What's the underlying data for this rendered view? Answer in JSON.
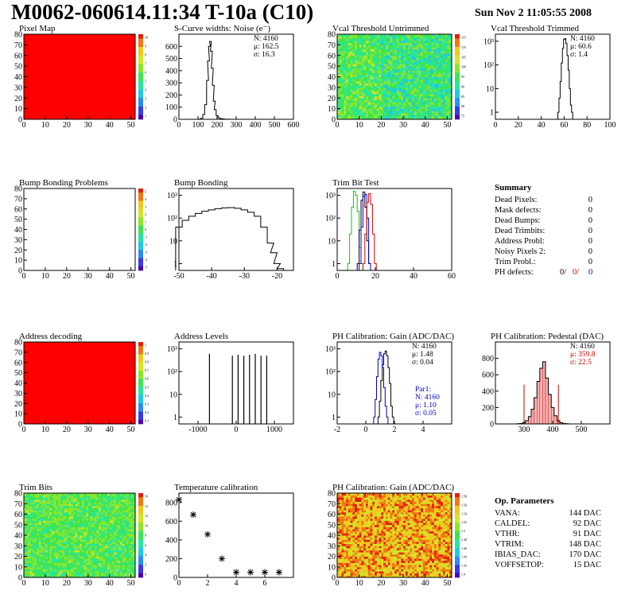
{
  "header": {
    "title": "M0062-060614.11:34 T-10a (C10)",
    "date": "Sun Nov  2 11:05:55 2008"
  },
  "summary": {
    "title": "Summary",
    "rows": [
      {
        "label": "Dead Pixels:",
        "value": "0"
      },
      {
        "label": "Mask defects:",
        "value": "0"
      },
      {
        "label": "Dead Bumps:",
        "value": "0"
      },
      {
        "label": "Dead Trimbits:",
        "value": "0"
      },
      {
        "label": "Address Probl:",
        "value": "0"
      },
      {
        "label": "Noisy Pixels 2:",
        "value": "0"
      },
      {
        "label": "Trim Probl.:",
        "value": "0"
      }
    ],
    "ph_defects": {
      "label": "PH defects:",
      "v1": "0/",
      "v2": "0/",
      "v3": "0"
    }
  },
  "op_parameters": {
    "title": "Op. Parameters",
    "rows": [
      {
        "label": "VANA:",
        "value": "144 DAC"
      },
      {
        "label": "CALDEL:",
        "value": "92 DAC"
      },
      {
        "label": "VTHR:",
        "value": "91 DAC"
      },
      {
        "label": "VTRIM:",
        "value": "148 DAC"
      },
      {
        "label": "IBIAS_DAC:",
        "value": "170 DAC"
      },
      {
        "label": "VOFFSETOP:",
        "value": "15 DAC"
      }
    ]
  },
  "colors": {
    "red_stat": "#cc0000",
    "blue_stat": "#0000cc",
    "trim_green": "#00cc00",
    "trim_red": "#dd0000",
    "trim_blue": "#0000cc",
    "black": "#000000"
  },
  "chart_data": [
    {
      "id": "pixel-map",
      "type": "heatmap",
      "title": "Pixel Map",
      "xlim": [
        0,
        52
      ],
      "ylim": [
        0,
        80
      ],
      "xticks": [
        "0",
        "10",
        "20",
        "30",
        "40",
        "50"
      ],
      "yticks": [
        "0",
        "10",
        "20",
        "30",
        "40",
        "50",
        "60",
        "70",
        "80"
      ],
      "fill": "uniform-max",
      "palette_ticks": [
        "10",
        "9",
        "8",
        "7",
        "6",
        "5",
        "4",
        "3",
        "2",
        "1"
      ]
    },
    {
      "id": "scurve-noise",
      "type": "line",
      "title": "S-Curve widths: Noise (e⁻)",
      "xlim": [
        0,
        600
      ],
      "ylim": [
        0,
        700
      ],
      "xticks": [
        "0",
        "100",
        "200",
        "300",
        "400",
        "500",
        "600"
      ],
      "yticks": [
        "0",
        "100",
        "200",
        "300",
        "400",
        "500",
        "600"
      ],
      "x": [
        100,
        110,
        120,
        130,
        140,
        150,
        155,
        160,
        165,
        170,
        175,
        180,
        185,
        190,
        200,
        210,
        220,
        230,
        240,
        250,
        260,
        280,
        300
      ],
      "y": [
        0,
        2,
        8,
        40,
        120,
        320,
        480,
        600,
        640,
        560,
        420,
        280,
        150,
        80,
        30,
        12,
        6,
        3,
        2,
        1,
        1,
        0,
        0
      ],
      "stats": {
        "n": "N: 4160",
        "mu": "μ: 162.5",
        "sigma": "σ: 16.3"
      }
    },
    {
      "id": "vcal-untrimmed",
      "type": "heatmap",
      "title": "Vcal Threshold Untrimmed",
      "xlim": [
        0,
        52
      ],
      "ylim": [
        0,
        80
      ],
      "xticks": [
        "0",
        "10",
        "20",
        "30",
        "40",
        "50"
      ],
      "yticks": [
        "0",
        "10",
        "20",
        "30",
        "40",
        "50",
        "60",
        "70",
        "80"
      ],
      "fill": "random-low",
      "palette_ticks": [
        "115",
        "110",
        "105",
        "100",
        "95",
        "90",
        "85",
        "80",
        "75"
      ]
    },
    {
      "id": "vcal-trimmed",
      "type": "line",
      "title": "Vcal Threshold Trimmed",
      "log_y": true,
      "xlim": [
        0,
        100
      ],
      "ylim_exp": [
        -0.3,
        3.3
      ],
      "xticks": [
        "0",
        "20",
        "40",
        "60",
        "80",
        "100"
      ],
      "yticks": [
        "1",
        "10",
        "10²",
        "10³"
      ],
      "x": [
        55,
        56,
        57,
        58,
        59,
        60,
        61,
        62,
        63,
        64,
        65,
        66,
        67
      ],
      "y": [
        1,
        4,
        20,
        120,
        500,
        1200,
        1300,
        800,
        250,
        60,
        10,
        2,
        1
      ],
      "stats": {
        "n": "N: 4160",
        "mu": "μ: 60.6",
        "sigma": "σ:  1.4"
      }
    },
    {
      "id": "bump-bonding-problems",
      "type": "heatmap",
      "title": "Bump Bonding Problems",
      "xlim": [
        0,
        52
      ],
      "ylim": [
        0,
        80
      ],
      "xticks": [
        "0",
        "10",
        "20",
        "30",
        "40",
        "50"
      ],
      "yticks": [
        "0",
        "10",
        "20",
        "30",
        "40",
        "50",
        "60",
        "70",
        "80"
      ],
      "fill": "empty",
      "palette_ticks": [
        "5",
        "4",
        "3",
        "2",
        "1",
        "0",
        "-1",
        "-2",
        "-3",
        "-4",
        "-5"
      ]
    },
    {
      "id": "bump-bonding",
      "type": "line",
      "title": "Bump Bonding",
      "log_y": true,
      "xlim": [
        -50,
        -15
      ],
      "ylim_exp": [
        -0.3,
        3.3
      ],
      "xticks": [
        "-50",
        "-40",
        "-30",
        "-20"
      ],
      "yticks": [
        "1",
        "10",
        "10²",
        "10³"
      ],
      "x": [
        -50,
        -48,
        -46,
        -44,
        -42,
        -40,
        -38,
        -36,
        -34,
        -32,
        -30,
        -28,
        -26,
        -24,
        -22,
        -21,
        -20,
        -19
      ],
      "y": [
        40,
        80,
        120,
        160,
        200,
        230,
        260,
        280,
        290,
        270,
        230,
        180,
        120,
        40,
        8,
        3,
        1,
        0.6
      ],
      "stats": {}
    },
    {
      "id": "trim-bit-test",
      "type": "line",
      "title": "Trim Bit Test",
      "log_y": true,
      "xlim": [
        0,
        60
      ],
      "ylim_exp": [
        -0.3,
        3.3
      ],
      "xticks": [
        "0",
        "20",
        "40",
        "60"
      ],
      "yticks": [
        "1",
        "10",
        "10²",
        "10³"
      ],
      "series": [
        {
          "color": "#00cc00",
          "x": [
            6,
            7,
            8,
            9,
            10,
            11,
            12,
            13
          ],
          "y": [
            1,
            20,
            300,
            1500,
            1000,
            200,
            5,
            1
          ]
        },
        {
          "color": "#000000",
          "x": [
            11,
            12,
            13,
            14,
            15,
            16,
            17
          ],
          "y": [
            1,
            30,
            600,
            1400,
            300,
            10,
            1
          ]
        },
        {
          "color": "#0000cc",
          "x": [
            12,
            13,
            14,
            15,
            16,
            17
          ],
          "y": [
            1,
            40,
            900,
            1100,
            100,
            1
          ]
        },
        {
          "color": "#dd0000",
          "x": [
            14,
            15,
            16,
            17,
            18,
            19,
            20
          ],
          "y": [
            1,
            20,
            500,
            1200,
            400,
            20,
            1
          ]
        }
      ],
      "stats": {}
    },
    {
      "id": "address-decoding",
      "type": "heatmap",
      "title": "Address decoding",
      "xlim": [
        0,
        52
      ],
      "ylim": [
        0,
        80
      ],
      "xticks": [
        "0",
        "10",
        "20",
        "30",
        "40",
        "50"
      ],
      "yticks": [
        "0",
        "10",
        "20",
        "30",
        "40",
        "50",
        "60",
        "70",
        "80"
      ],
      "fill": "uniform-max",
      "palette_ticks": [
        "1",
        "0.9",
        "0.8",
        "0.7",
        "0.6",
        "0.5",
        "0.4",
        "0.3",
        "0.2",
        "0.1"
      ]
    },
    {
      "id": "address-levels",
      "type": "bar",
      "title": "Address Levels",
      "log_y": true,
      "xlim": [
        -1500,
        1500
      ],
      "ylim_exp": [
        -0.3,
        3.3
      ],
      "xticks": [
        "-1000",
        "0",
        "1000"
      ],
      "yticks": [
        "1",
        "10",
        "10²",
        "10³"
      ],
      "x": [
        -700,
        -100,
        50,
        200,
        350,
        500,
        650,
        800
      ],
      "y": [
        600,
        500,
        550,
        500,
        550,
        600,
        500,
        500
      ],
      "stats": {}
    },
    {
      "id": "ph-gain",
      "type": "line",
      "title": "PH Calibration: Gain (ADC/DAC)",
      "log_y": true,
      "xlim": [
        -2,
        6
      ],
      "ylim_exp": [
        -0.3,
        3.3
      ],
      "xticks": [
        "-2",
        "0",
        "2",
        "4"
      ],
      "yticks": [
        "1",
        "10",
        "10²",
        "10³"
      ],
      "series": [
        {
          "color": "#000000",
          "x": [
            0.9,
            1.0,
            1.1,
            1.2,
            1.3,
            1.4,
            1.5,
            1.6,
            1.7,
            1.8,
            1.9
          ],
          "y": [
            1,
            5,
            40,
            200,
            600,
            800,
            500,
            150,
            30,
            3,
            1
          ]
        },
        {
          "color": "#0000cc",
          "x": [
            0.6,
            0.7,
            0.8,
            0.9,
            1.0,
            1.1,
            1.2,
            1.3,
            1.4,
            1.5
          ],
          "y": [
            1,
            6,
            60,
            350,
            700,
            500,
            150,
            20,
            3,
            1
          ]
        }
      ],
      "stats": {
        "n": "N: 4160",
        "mu": "μ: 1.48",
        "sigma": "σ: 0.04"
      },
      "stats2": {
        "title": "Par1:",
        "n": "N: 4160",
        "mu": "μ: 1.10",
        "sigma": "σ: 0.05"
      }
    },
    {
      "id": "ph-pedestal",
      "type": "line",
      "title": "PH Calibration: Pedestal (DAC)",
      "xlim": [
        200,
        600
      ],
      "ylim": [
        0,
        1000
      ],
      "xticks": [
        "300",
        "400",
        "500"
      ],
      "yticks": [
        "0",
        "200",
        "400",
        "600",
        "800"
      ],
      "x": [
        280,
        290,
        300,
        310,
        320,
        330,
        340,
        350,
        360,
        370,
        380,
        390,
        400,
        410,
        420,
        430,
        440,
        450
      ],
      "y": [
        2,
        5,
        15,
        40,
        90,
        180,
        320,
        520,
        680,
        760,
        560,
        360,
        200,
        100,
        40,
        15,
        5,
        2
      ],
      "stats": {
        "n": "N: 4160",
        "mu": "μ: 359.8",
        "sigma": "σ: 22.5"
      }
    },
    {
      "id": "trim-bits",
      "type": "heatmap",
      "title": "Trim Bits",
      "xlim": [
        0,
        52
      ],
      "ylim": [
        0,
        80
      ],
      "xticks": [
        "0",
        "10",
        "20",
        "30",
        "40",
        "50"
      ],
      "yticks": [
        "0",
        "10",
        "20",
        "30",
        "40",
        "50",
        "60",
        "70",
        "80"
      ],
      "fill": "random-mid",
      "palette_ticks": [
        "16",
        "14",
        "12",
        "10",
        "8",
        "6",
        "4",
        "2",
        "0"
      ]
    },
    {
      "id": "temperature-calibration",
      "type": "scatter",
      "title": "Temperature calibration",
      "xlim": [
        0,
        8
      ],
      "ylim": [
        0,
        900
      ],
      "xticks": [
        "0",
        "2",
        "4",
        "6"
      ],
      "yticks": [
        "0",
        "200",
        "400",
        "600",
        "800"
      ],
      "x": [
        0,
        1,
        2,
        3,
        4,
        5,
        6,
        7
      ],
      "y": [
        830,
        670,
        460,
        200,
        55,
        55,
        55,
        55
      ],
      "stats": {}
    },
    {
      "id": "ph-gain-map",
      "type": "heatmap",
      "title": "PH Calibration: Gain (ADC/DAC)",
      "xlim": [
        0,
        52
      ],
      "ylim": [
        0,
        80
      ],
      "xticks": [
        "0",
        "10",
        "20",
        "30",
        "40",
        "50"
      ],
      "yticks": [
        "0",
        "10",
        "20",
        "30",
        "40",
        "50",
        "60",
        "70",
        "80"
      ],
      "fill": "random-high",
      "palette_ticks": [
        "1.58",
        "1.56",
        "1.54",
        "1.52",
        "1.5",
        "1.48",
        "1.46",
        "1.44",
        "1.42",
        "1.4"
      ]
    }
  ]
}
